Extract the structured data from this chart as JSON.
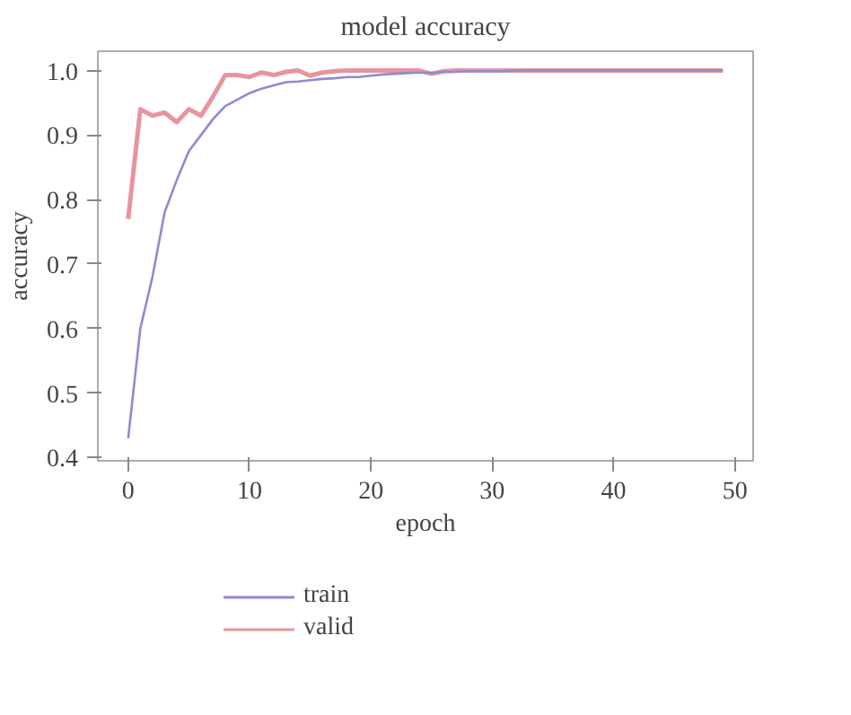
{
  "chart_data": {
    "type": "line",
    "title": "model accuracy",
    "xlabel": "epoch",
    "ylabel": "accuracy",
    "x": [
      0,
      1,
      2,
      3,
      4,
      5,
      6,
      7,
      8,
      9,
      10,
      11,
      12,
      13,
      14,
      15,
      16,
      17,
      18,
      19,
      20,
      21,
      22,
      23,
      24,
      25,
      26,
      27,
      28,
      29,
      30,
      31,
      32,
      33,
      34,
      35,
      36,
      37,
      38,
      39,
      40,
      41,
      42,
      43,
      44,
      45,
      46,
      47,
      48,
      49
    ],
    "series": [
      {
        "name": "train",
        "color": "#8c8cd2",
        "values": [
          0.43,
          0.6,
          0.68,
          0.78,
          0.83,
          0.875,
          0.9,
          0.925,
          0.945,
          0.955,
          0.965,
          0.972,
          0.977,
          0.982,
          0.983,
          0.985,
          0.987,
          0.988,
          0.99,
          0.99,
          0.992,
          0.994,
          0.995,
          0.996,
          0.997,
          0.996,
          0.998,
          0.998,
          0.999,
          0.999,
          0.999,
          0.999,
          1.0,
          1.0,
          1.0,
          1.0,
          1.0,
          1.0,
          1.0,
          1.0,
          1.0,
          1.0,
          1.0,
          1.0,
          1.0,
          1.0,
          1.0,
          1.0,
          1.0,
          1.0
        ]
      },
      {
        "name": "valid",
        "color": "#e8949e",
        "values": [
          0.77,
          0.94,
          0.93,
          0.935,
          0.92,
          0.94,
          0.93,
          0.96,
          0.993,
          0.993,
          0.99,
          0.997,
          0.993,
          0.998,
          1.0,
          0.992,
          0.997,
          0.999,
          1.0,
          1.0,
          1.0,
          1.0,
          1.0,
          1.0,
          1.0,
          0.995,
          0.999,
          1.0,
          1.0,
          1.0,
          1.0,
          1.0,
          1.0,
          1.0,
          1.0,
          1.0,
          1.0,
          1.0,
          1.0,
          1.0,
          1.0,
          1.0,
          1.0,
          1.0,
          1.0,
          1.0,
          1.0,
          1.0,
          1.0,
          1.0
        ]
      }
    ],
    "xlim": [
      -2.5,
      51.5
    ],
    "ylim": [
      0.395,
      1.03
    ],
    "xticks": [
      0,
      10,
      20,
      30,
      40,
      50
    ],
    "yticks": [
      {
        "value": 0.4,
        "label": "0.4"
      },
      {
        "value": 0.5,
        "label": "0.5"
      },
      {
        "value": 0.6,
        "label": "0.6"
      },
      {
        "value": 0.7,
        "label": "0.7"
      },
      {
        "value": 0.8,
        "label": "0.8"
      },
      {
        "value": 0.9,
        "label": "0.9"
      },
      {
        "value": 1.0,
        "label": "1.0"
      }
    ],
    "grid": false,
    "legend": "bottom left",
    "line_style": "solid"
  }
}
